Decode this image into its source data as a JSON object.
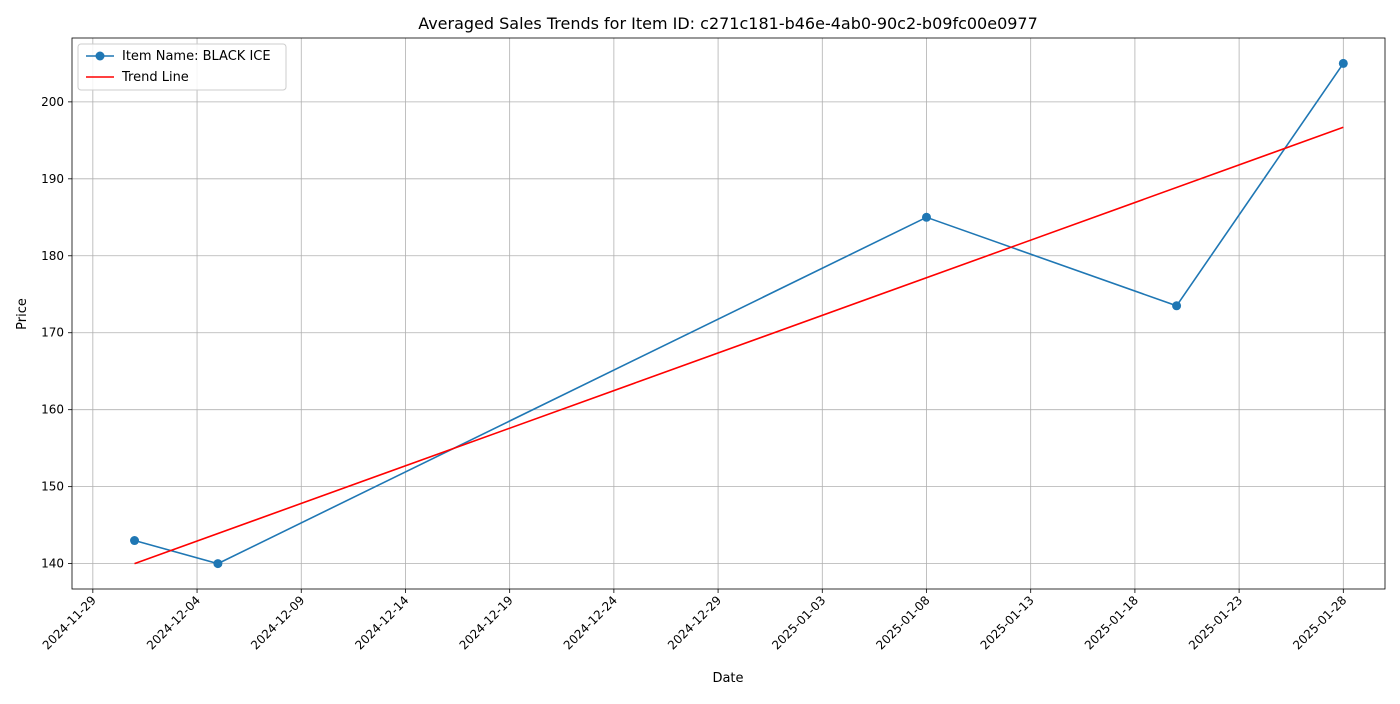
{
  "chart_data": {
    "type": "line",
    "title": "Averaged Sales Trends for Item ID: c271c181-b46e-4ab0-90c2-b09fc00e0977",
    "xlabel": "Date",
    "ylabel": "Price",
    "x_type": "date",
    "xlim": [
      "2024-11-28",
      "2025-01-30"
    ],
    "ylim": [
      136.7,
      208.3
    ],
    "x_ticks": [
      "2024-11-29",
      "2024-12-04",
      "2024-12-09",
      "2024-12-14",
      "2024-12-19",
      "2024-12-24",
      "2024-12-29",
      "2025-01-03",
      "2025-01-08",
      "2025-01-13",
      "2025-01-18",
      "2025-01-23",
      "2025-01-28"
    ],
    "y_ticks": [
      140,
      150,
      160,
      170,
      180,
      190,
      200
    ],
    "grid": true,
    "legend_position": "upper-left",
    "series": [
      {
        "name": "Item Name: BLACK ICE",
        "color": "#1f77b4",
        "marker": "circle",
        "points": [
          {
            "x": "2024-12-01",
            "y": 143
          },
          {
            "x": "2024-12-05",
            "y": 140
          },
          {
            "x": "2025-01-08",
            "y": 185
          },
          {
            "x": "2025-01-20",
            "y": 173.5
          },
          {
            "x": "2025-01-28",
            "y": 205
          }
        ]
      },
      {
        "name": "Trend Line",
        "color": "#ff0000",
        "marker": "none",
        "points": [
          {
            "x": "2024-12-01",
            "y": 140
          },
          {
            "x": "2025-01-28",
            "y": 196.7
          }
        ]
      }
    ]
  }
}
